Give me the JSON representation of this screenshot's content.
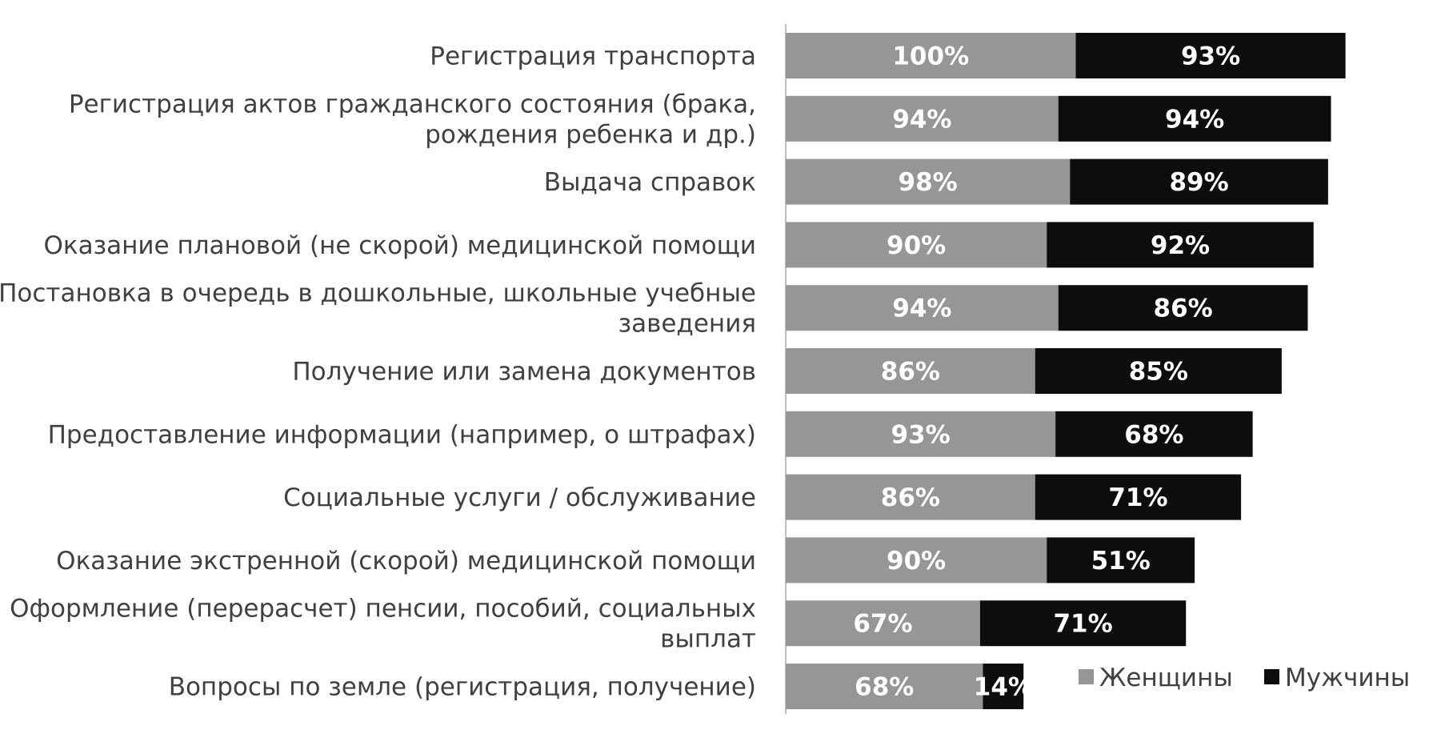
{
  "chart_data": {
    "type": "bar",
    "orientation": "horizontal",
    "stacked": true,
    "title": "",
    "xlabel": "",
    "ylabel": "",
    "xlim": [
      0,
      200
    ],
    "grid": false,
    "legend_position": "bottom-right",
    "categories": [
      "Регистрация транспорта",
      "Регистрация актов гражданского состояния (брака, рождения ребенка и др.)",
      "Выдача справок",
      "Оказание плановой (не скорой) медицинской помощи",
      "Постановка в очередь в дошкольные, школьные учебные заведения",
      "Получение или замена документов",
      "Предоставление информации (например, о штрафах)",
      "Социальные услуги / обслуживание",
      "Оказание экстренной (скорой) медицинской помощи",
      "Оформление (перерасчет) пенсии, пособий, социальных выплат",
      "Вопросы по земле (регистрация, получение)"
    ],
    "category_lines": [
      [
        "Регистрация транспорта"
      ],
      [
        "Регистрация актов гражданского состояния (брака,",
        "рождения ребенка и др.)"
      ],
      [
        "Выдача справок"
      ],
      [
        "Оказание плановой (не скорой) медицинской помощи"
      ],
      [
        "Постановка в очередь в дошкольные, школьные учебные",
        "заведения"
      ],
      [
        "Получение или замена документов"
      ],
      [
        "Предоставление информации (например, о штрафах)"
      ],
      [
        "Социальные услуги / обслуживание"
      ],
      [
        "Оказание экстренной (скорой) медицинской помощи"
      ],
      [
        "Оформление (перерасчет) пенсии, пособий, социальных",
        "выплат"
      ],
      [
        "Вопросы по земле (регистрация, получение)"
      ]
    ],
    "series": [
      {
        "name": "Женщины",
        "color": "#969696",
        "values": [
          100,
          94,
          98,
          90,
          94,
          86,
          93,
          86,
          90,
          67,
          68
        ]
      },
      {
        "name": "Мужчины",
        "color": "#0d0d0d",
        "values": [
          93,
          94,
          89,
          92,
          86,
          85,
          68,
          71,
          51,
          71,
          14
        ]
      }
    ],
    "value_suffix": "%"
  }
}
